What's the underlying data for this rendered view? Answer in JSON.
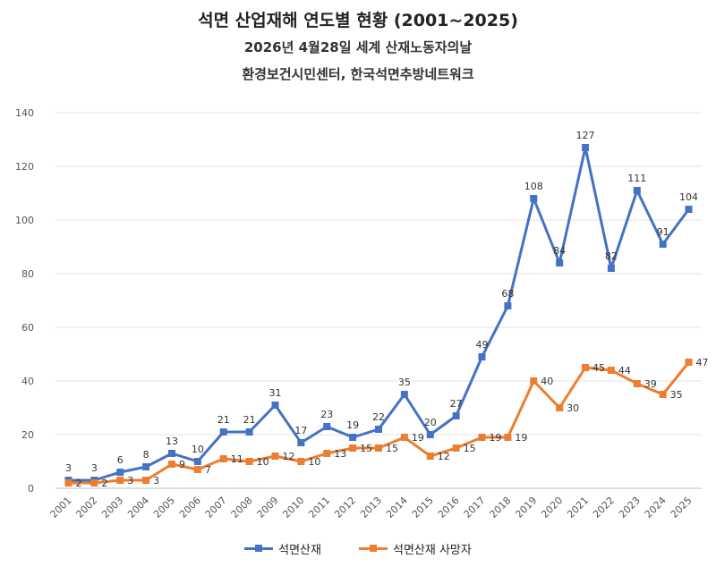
{
  "header": {
    "title": "석면 산업재해 연도별 현황 (2001~2025)",
    "subtitle1": "2026년 4월28일 세계 산재노동자의날",
    "subtitle2": "환경보건시민센터, 한국석면추방네트워크"
  },
  "chart_data": {
    "type": "line",
    "title": "석면 산업재해 연도별 현황 (2001~2025)",
    "categories": [
      "2001",
      "2002",
      "2003",
      "2004",
      "2005",
      "2006",
      "2007",
      "2008",
      "2009",
      "2010",
      "2011",
      "2012",
      "2013",
      "2014",
      "2015",
      "2016",
      "2017",
      "2018",
      "2019",
      "2020",
      "2021",
      "2022",
      "2023",
      "2024",
      "2025"
    ],
    "series": [
      {
        "name": "석면산재",
        "color": "#4472c4",
        "values": [
          3,
          3,
          6,
          8,
          13,
          10,
          21,
          21,
          31,
          17,
          23,
          19,
          22,
          35,
          20,
          27,
          49,
          68,
          108,
          84,
          127,
          82,
          111,
          91,
          104
        ]
      },
      {
        "name": "석면산재  사망자",
        "color": "#ed7d31",
        "values": [
          2,
          2,
          3,
          3,
          9,
          7,
          11,
          10,
          12,
          10,
          13,
          15,
          15,
          19,
          12,
          15,
          19,
          19,
          40,
          30,
          45,
          44,
          39,
          35,
          47
        ]
      }
    ],
    "ylim": [
      0,
      140
    ],
    "yticks": [
      0,
      20,
      40,
      60,
      80,
      100,
      120,
      140
    ],
    "grid": true,
    "legend": "bottom"
  }
}
